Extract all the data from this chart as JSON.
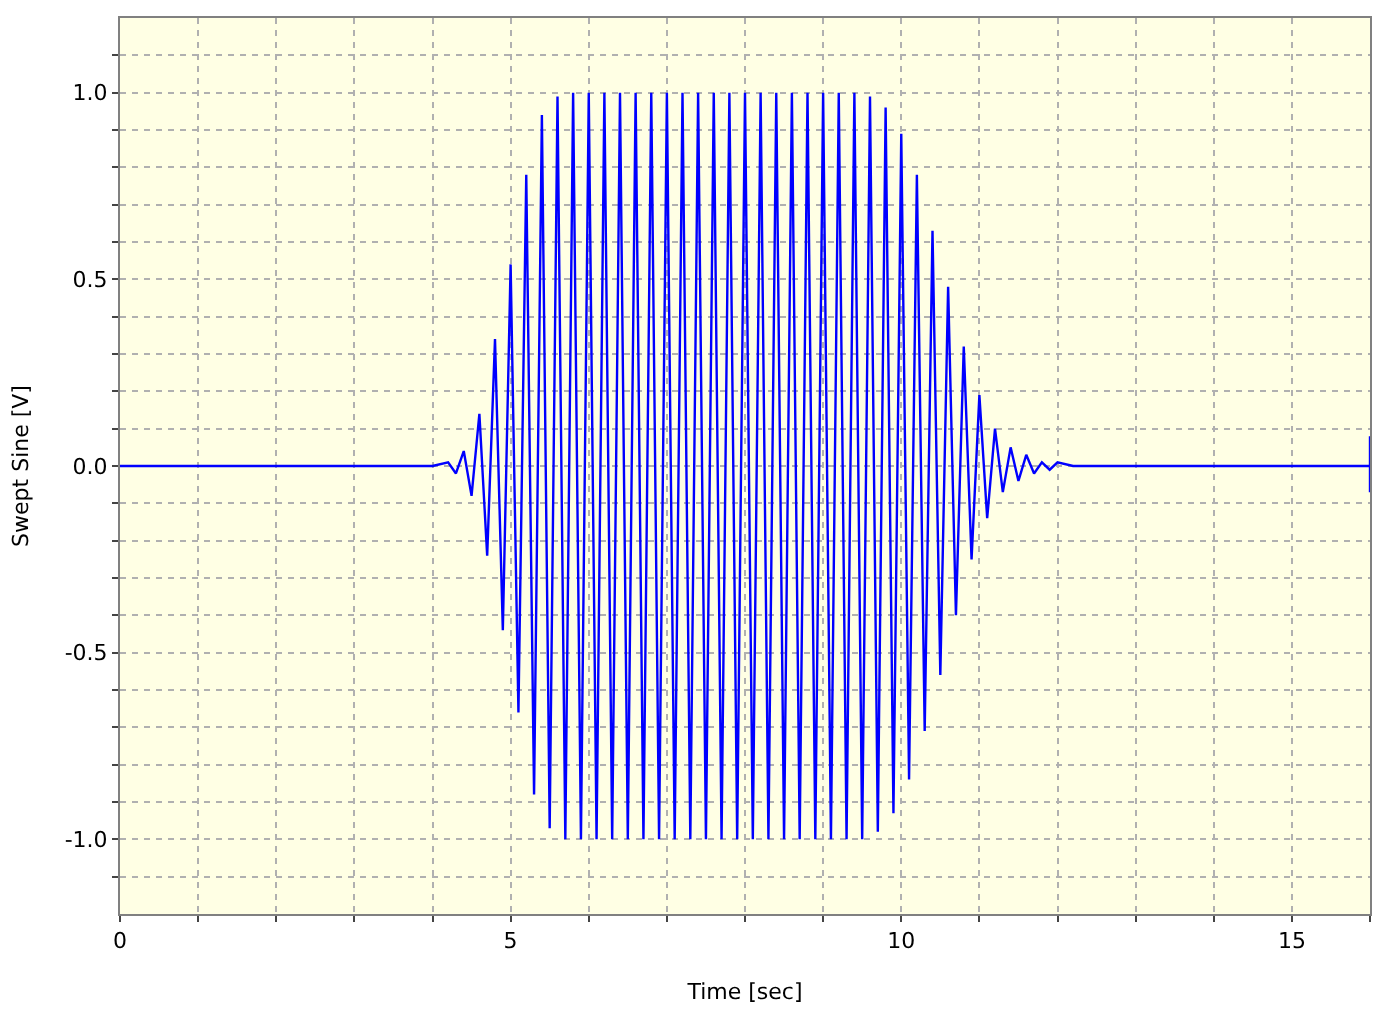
{
  "chart_data": {
    "type": "line",
    "xlabel": "Time [sec]",
    "ylabel": "Swept Sine [V]",
    "x": [
      0,
      4.0,
      4.2,
      4.3,
      4.4,
      4.5,
      4.6,
      4.7,
      4.8,
      4.9,
      5.0,
      5.1,
      5.2,
      5.3,
      5.4,
      5.5,
      5.6,
      5.7,
      5.8,
      5.9,
      6.0,
      6.1,
      6.2,
      6.3,
      6.4,
      6.5,
      6.6,
      6.7,
      6.8,
      6.9,
      7.0,
      7.1,
      7.2,
      7.3,
      7.4,
      7.5,
      7.6,
      7.7,
      7.8,
      7.9,
      8.0,
      8.1,
      8.2,
      8.3,
      8.4,
      8.5,
      8.6,
      8.7,
      8.8,
      8.9,
      9.0,
      9.1,
      9.2,
      9.3,
      9.4,
      9.5,
      9.6,
      9.7,
      9.8,
      9.9,
      10.0,
      10.1,
      10.2,
      10.3,
      10.4,
      10.5,
      10.6,
      10.7,
      10.8,
      10.9,
      11.0,
      11.1,
      11.2,
      11.3,
      11.4,
      11.5,
      11.6,
      11.7,
      11.8,
      11.9,
      12.0,
      12.2,
      16,
      16,
      16
    ],
    "series": [
      {
        "color": "#0000ff",
        "values": [
          0,
          0,
          0.01,
          -0.02,
          0.04,
          -0.08,
          0.14,
          -0.24,
          0.34,
          -0.44,
          0.54,
          -0.66,
          0.78,
          -0.88,
          0.94,
          -0.97,
          0.99,
          -1.0,
          1.0,
          -1.0,
          1.0,
          -1.0,
          1.0,
          -1.0,
          1.0,
          -1.0,
          1.0,
          -1.0,
          1.0,
          -1.0,
          1.0,
          -1.0,
          1.0,
          -1.0,
          1.0,
          -1.0,
          1.0,
          -1.0,
          1.0,
          -1.0,
          1.0,
          -1.0,
          1.0,
          -1.0,
          1.0,
          -1.0,
          1.0,
          -1.0,
          1.0,
          -1.0,
          1.0,
          -1.0,
          1.0,
          -1.0,
          1.0,
          -1.0,
          0.99,
          -0.98,
          0.96,
          -0.93,
          0.89,
          -0.84,
          0.78,
          -0.71,
          0.63,
          -0.56,
          0.48,
          -0.4,
          0.32,
          -0.25,
          0.19,
          -0.14,
          0.1,
          -0.07,
          0.05,
          -0.04,
          0.03,
          -0.02,
          0.01,
          -0.01,
          0.01,
          0,
          0,
          0.08,
          -0.07
        ]
      }
    ],
    "xlim": [
      0,
      16
    ],
    "xticks": [
      0,
      {
        "value": 1,
        "label": null
      },
      {
        "value": 2,
        "label": null
      },
      {
        "value": 3,
        "label": null
      },
      {
        "value": 4,
        "label": null
      },
      5,
      {
        "value": 6,
        "label": null
      },
      {
        "value": 7,
        "label": null
      },
      {
        "value": 8,
        "label": null
      },
      {
        "value": 9,
        "label": null
      },
      10,
      {
        "value": 11,
        "label": null
      },
      {
        "value": 12,
        "label": null
      },
      {
        "value": 13,
        "label": null
      },
      {
        "value": 14,
        "label": null
      },
      15,
      {
        "value": 16,
        "label": null
      }
    ],
    "ylim": [
      -1.2,
      1.2
    ],
    "yticks": [
      {
        "value": -1.1,
        "label": null
      },
      {
        "value": -1.0,
        "label": "-1.0"
      },
      {
        "value": -0.9,
        "label": null
      },
      {
        "value": -0.8,
        "label": null
      },
      {
        "value": -0.7,
        "label": null
      },
      {
        "value": -0.6,
        "label": null
      },
      {
        "value": -0.5,
        "label": "-0.5"
      },
      {
        "value": -0.4,
        "label": null
      },
      {
        "value": -0.3,
        "label": null
      },
      {
        "value": -0.2,
        "label": null
      },
      {
        "value": -0.1,
        "label": null
      },
      {
        "value": 0,
        "label": "0.0"
      },
      {
        "value": 0.1,
        "label": null
      },
      {
        "value": 0.2,
        "label": null
      },
      {
        "value": 0.3,
        "label": null
      },
      {
        "value": 0.4,
        "label": null
      },
      {
        "value": 0.5,
        "label": "0.5"
      },
      {
        "value": 0.6,
        "label": null
      },
      {
        "value": 0.7,
        "label": null
      },
      {
        "value": 0.8,
        "label": null
      },
      {
        "value": 0.9,
        "label": null
      },
      {
        "value": 1.0,
        "label": "1.0"
      },
      {
        "value": 1.1,
        "label": null
      }
    ],
    "grid": true,
    "marker": "none",
    "line_style": "solid"
  }
}
